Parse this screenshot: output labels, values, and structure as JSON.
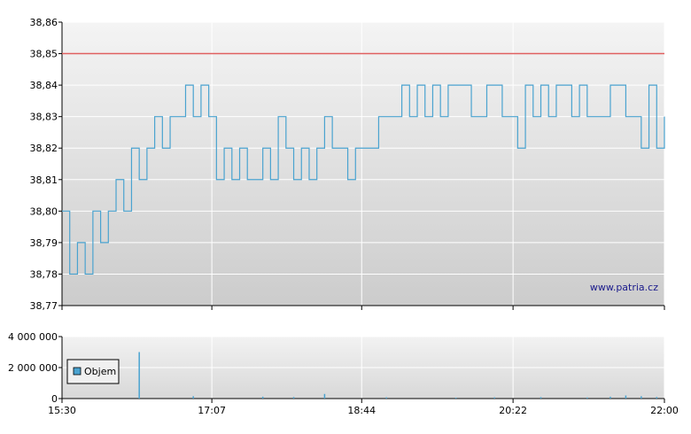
{
  "chart_data": [
    {
      "type": "line",
      "title": "",
      "xlabel": "",
      "ylabel": "",
      "ylim": [
        38.77,
        38.86
      ],
      "y_ticks": [
        "38,86",
        "38,85",
        "38,84",
        "38,83",
        "38,82",
        "38,81",
        "38,80",
        "38,79",
        "38,78",
        "38,77"
      ],
      "reference_line": {
        "value": 38.85,
        "color": "#e06060"
      },
      "grid": true,
      "watermark": "www.patria.cz",
      "line_color": "#4aa3d0",
      "series": [
        {
          "x": [
            "15:30",
            "15:35",
            "15:40",
            "15:45",
            "15:50",
            "15:55",
            "16:00",
            "16:05",
            "16:10",
            "16:15",
            "16:20",
            "16:25",
            "16:30",
            "16:35",
            "16:40",
            "16:45",
            "16:50",
            "16:55",
            "17:00",
            "17:05",
            "17:10",
            "17:15",
            "17:20",
            "17:25",
            "17:30",
            "17:35",
            "17:40",
            "17:45",
            "17:50",
            "17:55",
            "18:00",
            "18:05",
            "18:10",
            "18:15",
            "18:20",
            "18:25",
            "18:30",
            "18:35",
            "18:40",
            "18:45",
            "18:50",
            "18:55",
            "19:00",
            "19:05",
            "19:10",
            "19:15",
            "19:20",
            "19:25",
            "19:30",
            "19:35",
            "19:40",
            "19:45",
            "19:50",
            "19:55",
            "20:00",
            "20:05",
            "20:10",
            "20:15",
            "20:20",
            "20:25",
            "20:30",
            "20:35",
            "20:40",
            "20:45",
            "20:50",
            "20:55",
            "21:00",
            "21:05",
            "21:10",
            "21:15",
            "21:20",
            "21:25",
            "21:30",
            "21:35",
            "21:40",
            "21:45",
            "21:50",
            "21:55",
            "22:00"
          ],
          "values": [
            38.8,
            38.78,
            38.79,
            38.78,
            38.8,
            38.79,
            38.8,
            38.81,
            38.8,
            38.82,
            38.81,
            38.82,
            38.83,
            38.82,
            38.83,
            38.83,
            38.84,
            38.83,
            38.84,
            38.83,
            38.81,
            38.82,
            38.81,
            38.82,
            38.81,
            38.81,
            38.82,
            38.81,
            38.83,
            38.82,
            38.81,
            38.82,
            38.81,
            38.82,
            38.83,
            38.82,
            38.82,
            38.81,
            38.82,
            38.82,
            38.82,
            38.83,
            38.83,
            38.83,
            38.84,
            38.83,
            38.84,
            38.83,
            38.84,
            38.83,
            38.84,
            38.84,
            38.84,
            38.83,
            38.83,
            38.84,
            38.84,
            38.83,
            38.83,
            38.82,
            38.84,
            38.83,
            38.84,
            38.83,
            38.84,
            38.84,
            38.83,
            38.84,
            38.83,
            38.83,
            38.83,
            38.84,
            38.84,
            38.83,
            38.83,
            38.82,
            38.84,
            38.82,
            38.83
          ]
        }
      ]
    },
    {
      "type": "bar",
      "title": "",
      "xlabel": "",
      "ylabel": "",
      "ylim": [
        0,
        4000000
      ],
      "y_ticks": [
        "4 000 000",
        "2 000 000",
        "0"
      ],
      "x_ticks": [
        "15:30",
        "17:07",
        "18:44",
        "20:22",
        "22:00"
      ],
      "legend": {
        "label": "Objem",
        "position": "left"
      },
      "bar_color": "#4aa3d0",
      "series": [
        {
          "name": "Objem",
          "x": [
            "16:20",
            "16:55",
            "17:40",
            "18:00",
            "18:20",
            "19:00",
            "19:45",
            "20:10",
            "20:40",
            "21:10",
            "21:25",
            "21:35",
            "21:45",
            "21:55"
          ],
          "values": [
            3000000,
            150000,
            120000,
            100000,
            300000,
            80000,
            60000,
            80000,
            90000,
            70000,
            120000,
            200000,
            150000,
            100000
          ]
        }
      ]
    }
  ]
}
